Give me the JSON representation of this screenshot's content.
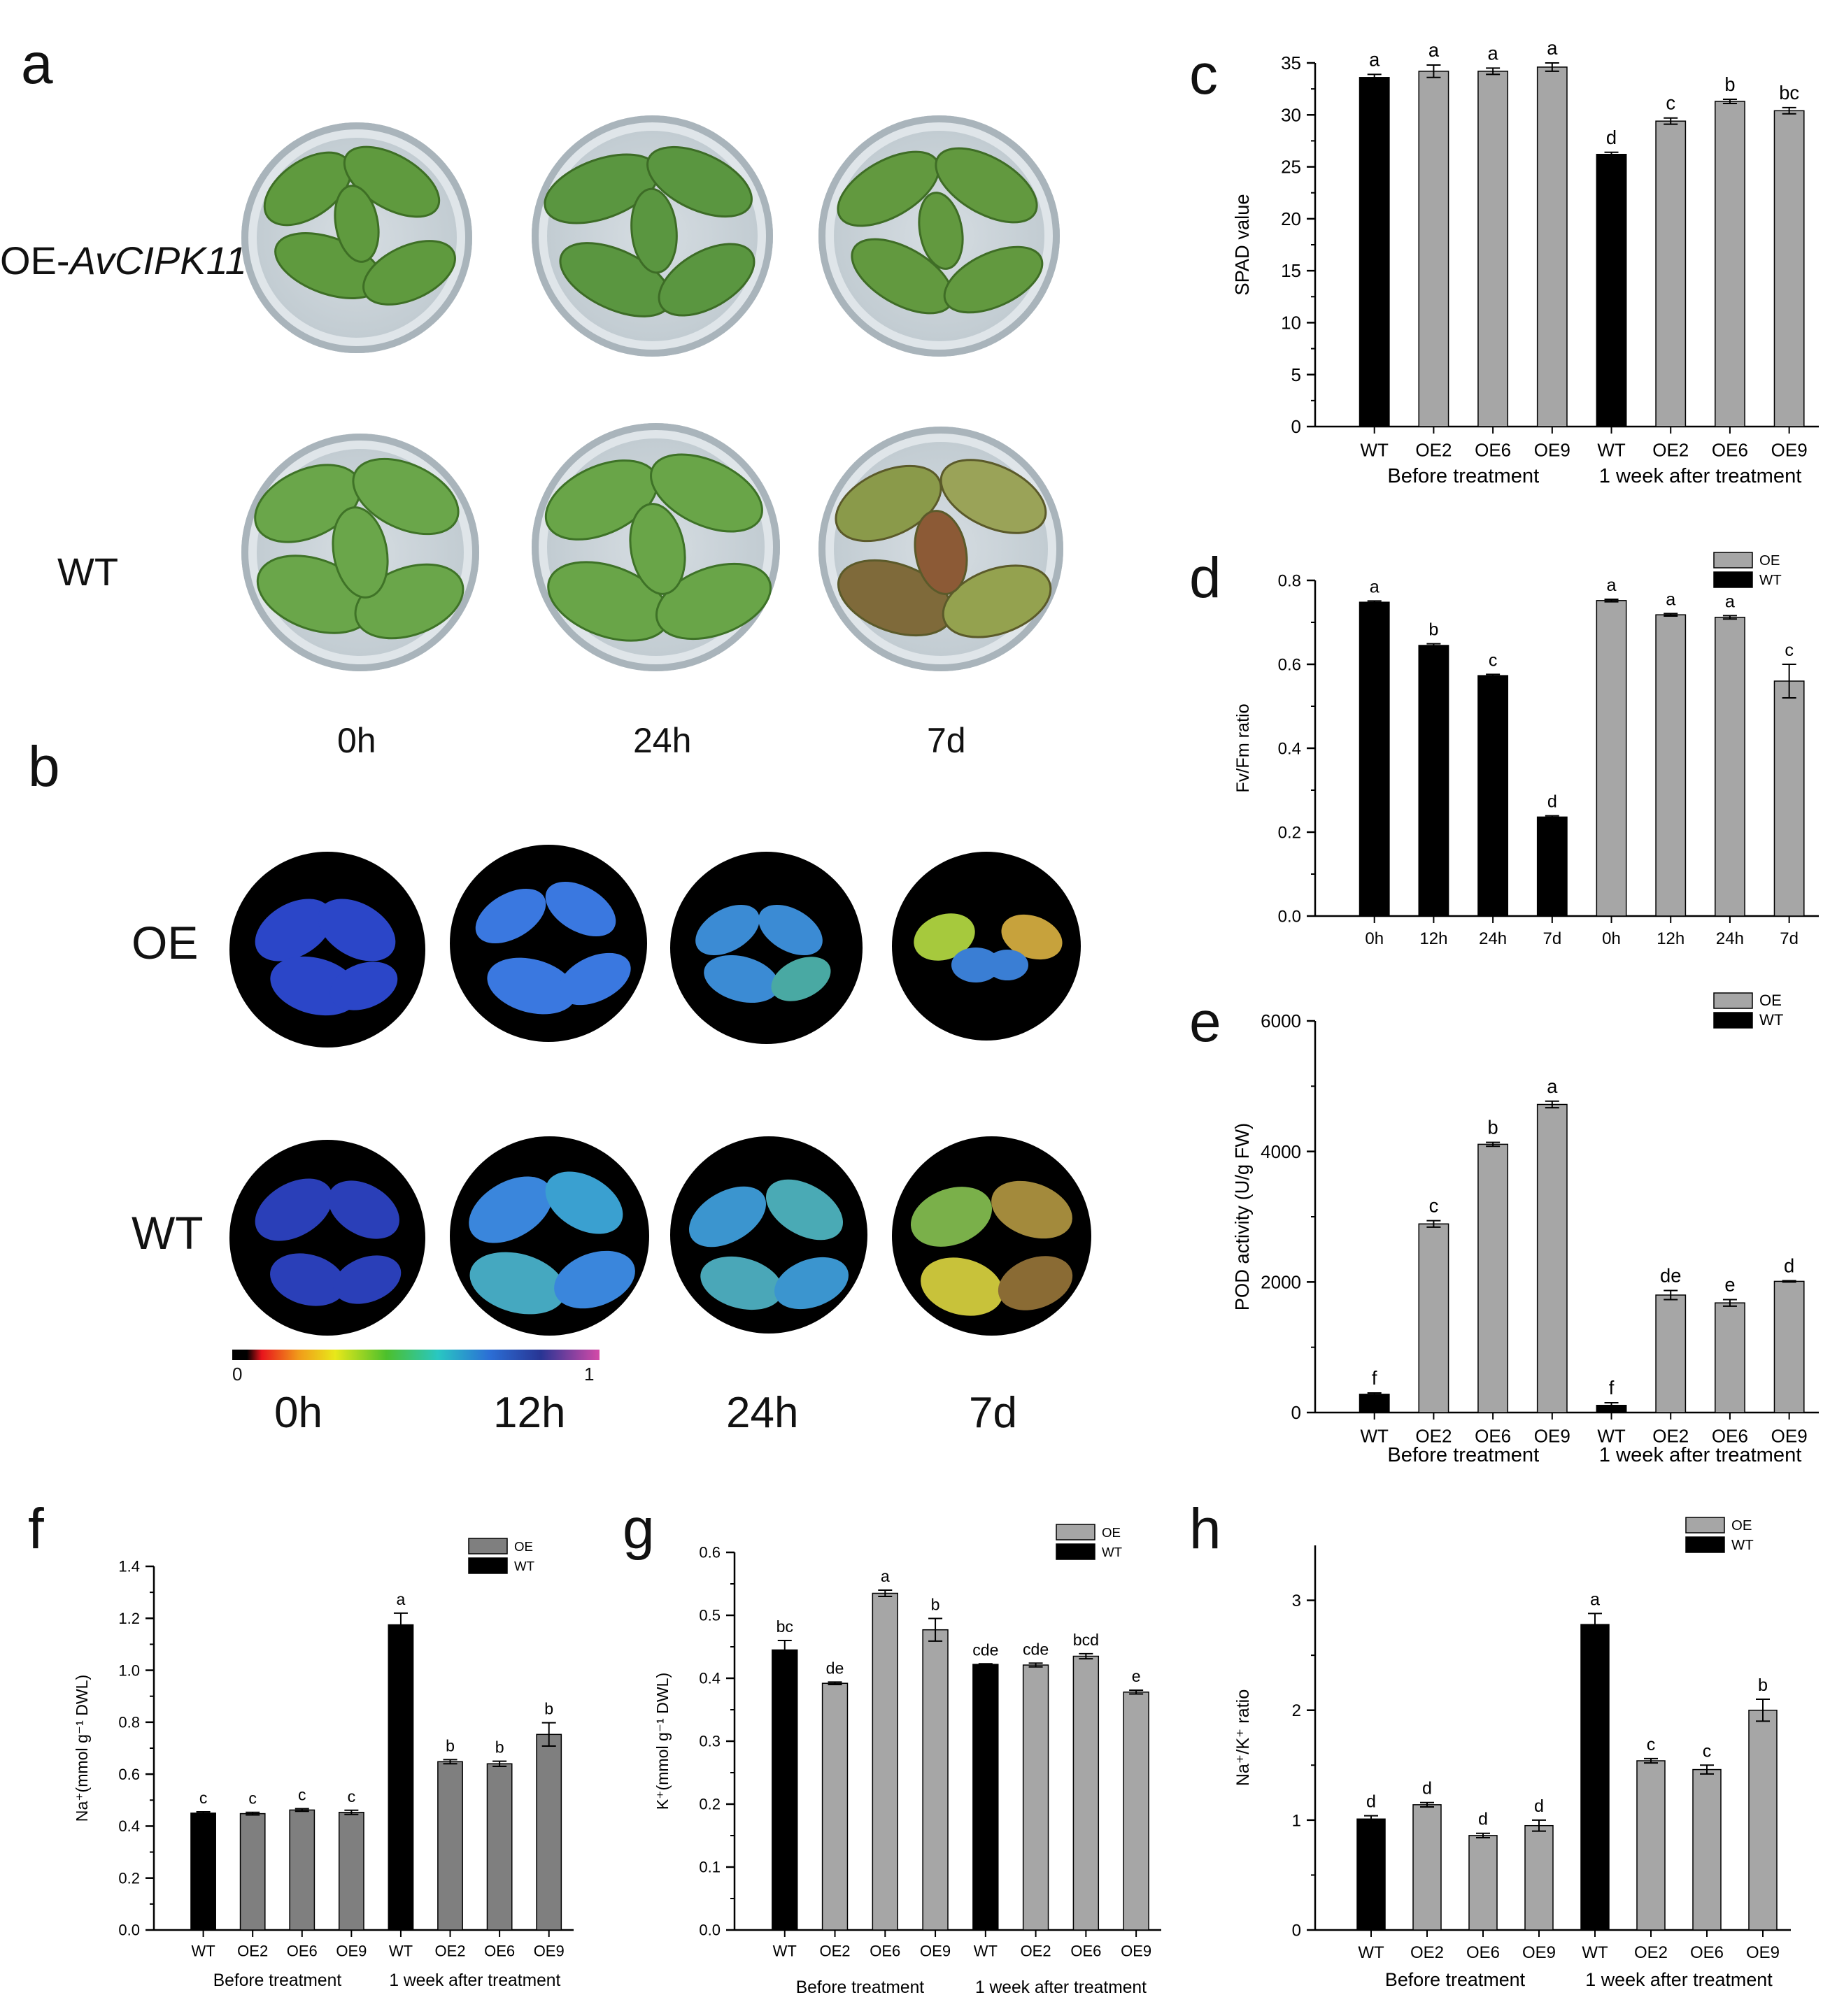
{
  "panels": {
    "a": {
      "letter": "a",
      "rows": [
        "OE-",
        "AvCIPK11",
        "WT"
      ],
      "times": [
        "0h",
        "24h",
        "7d"
      ]
    },
    "b": {
      "letter": "b",
      "rows": [
        "OE",
        "WT"
      ],
      "times": [
        "0h",
        "12h",
        "24h",
        "7d"
      ],
      "scale_min": "0",
      "scale_max": "1"
    }
  },
  "chart_data": [
    {
      "id": "c",
      "letter": "c",
      "type": "bar",
      "ylabel": "SPAD value",
      "ylim": [
        0,
        35
      ],
      "yticks": [
        0,
        5,
        10,
        15,
        20,
        25,
        30,
        35
      ],
      "categories": [
        "WT",
        "OE2",
        "OE6",
        "OE9",
        "WT",
        "OE2",
        "OE6",
        "OE9"
      ],
      "values": [
        33.6,
        34.2,
        34.2,
        34.6,
        26.2,
        29.4,
        31.3,
        30.4
      ],
      "errors": [
        0.3,
        0.6,
        0.3,
        0.4,
        0.2,
        0.3,
        0.2,
        0.3
      ],
      "letters": [
        "a",
        "a",
        "a",
        "a",
        "d",
        "c",
        "b",
        "bc"
      ],
      "bar_colors": [
        "#000000",
        "#a6a6a6",
        "#a6a6a6",
        "#a6a6a6",
        "#000000",
        "#a6a6a6",
        "#a6a6a6",
        "#a6a6a6"
      ],
      "group_labels": [
        "Before treatment",
        "1 week after treatment"
      ]
    },
    {
      "id": "d",
      "letter": "d",
      "type": "bar",
      "ylabel": "Fv/Fm ratio",
      "ylim": [
        0,
        0.8
      ],
      "yticks": [
        0.0,
        0.2,
        0.4,
        0.6,
        0.8
      ],
      "categories": [
        "0h",
        "12h",
        "24h",
        "7d",
        "0h",
        "12h",
        "24h",
        "7d"
      ],
      "values": [
        0.748,
        0.645,
        0.573,
        0.236,
        0.752,
        0.718,
        0.712,
        0.56
      ],
      "errors": [
        0.003,
        0.004,
        0.003,
        0.003,
        0.003,
        0.003,
        0.004,
        0.04
      ],
      "letters": [
        "a",
        "b",
        "c",
        "d",
        "a",
        "a",
        "a",
        "c"
      ],
      "bar_colors": [
        "#000000",
        "#000000",
        "#000000",
        "#000000",
        "#a6a6a6",
        "#a6a6a6",
        "#a6a6a6",
        "#a6a6a6"
      ],
      "legend": [
        {
          "name": "OE",
          "color": "#a6a6a6"
        },
        {
          "name": "WT",
          "color": "#000000"
        }
      ],
      "legend_position": "top-right",
      "group_labels": []
    },
    {
      "id": "e",
      "letter": "e",
      "type": "bar",
      "ylabel": "POD activity (U/g FW)",
      "ylim": [
        0,
        6000
      ],
      "yticks": [
        0,
        2000,
        4000,
        6000
      ],
      "categories": [
        "WT",
        "OE2",
        "OE6",
        "OE9",
        "WT",
        "OE2",
        "OE6",
        "OE9"
      ],
      "values": [
        280,
        2890,
        4110,
        4720,
        110,
        1800,
        1680,
        2010
      ],
      "errors": [
        20,
        50,
        30,
        50,
        40,
        70,
        50,
        10
      ],
      "letters": [
        "f",
        "c",
        "b",
        "a",
        "f",
        "de",
        "e",
        "d"
      ],
      "bar_colors": [
        "#000000",
        "#a6a6a6",
        "#a6a6a6",
        "#a6a6a6",
        "#000000",
        "#a6a6a6",
        "#a6a6a6",
        "#a6a6a6"
      ],
      "legend": [
        {
          "name": "OE",
          "color": "#a6a6a6"
        },
        {
          "name": "WT",
          "color": "#000000"
        }
      ],
      "legend_position": "top-right",
      "group_labels": [
        "Before treatment",
        "1 week after treatment"
      ]
    },
    {
      "id": "f",
      "letter": "f",
      "type": "bar",
      "ylabel": "Na⁺(mmol g⁻¹ DWL)",
      "ylim": [
        0,
        1.4
      ],
      "yticks": [
        0.0,
        0.2,
        0.4,
        0.6,
        0.8,
        1.0,
        1.2,
        1.4
      ],
      "categories": [
        "WT",
        "OE2",
        "OE6",
        "OE9",
        "WT",
        "OE2",
        "OE6",
        "OE9"
      ],
      "values": [
        0.45,
        0.448,
        0.462,
        0.453,
        1.175,
        0.648,
        0.64,
        0.753
      ],
      "errors": [
        0.005,
        0.005,
        0.005,
        0.008,
        0.045,
        0.008,
        0.01,
        0.045
      ],
      "letters": [
        "c",
        "c",
        "c",
        "c",
        "a",
        "b",
        "b",
        "b"
      ],
      "bar_colors": [
        "#000000",
        "#7f7f7f",
        "#7f7f7f",
        "#7f7f7f",
        "#000000",
        "#7f7f7f",
        "#7f7f7f",
        "#7f7f7f"
      ],
      "legend": [
        {
          "name": "OE",
          "color": "#7f7f7f"
        },
        {
          "name": "WT",
          "color": "#000000"
        }
      ],
      "legend_position": "top-right",
      "group_labels": [
        "Before treatment",
        "1 week after treatment"
      ]
    },
    {
      "id": "g",
      "letter": "g",
      "type": "bar",
      "ylabel": "K⁺(mmol g⁻¹ DWL)",
      "ylim": [
        0,
        0.6
      ],
      "yticks": [
        0.0,
        0.1,
        0.2,
        0.3,
        0.4,
        0.5,
        0.6
      ],
      "categories": [
        "WT",
        "OE2",
        "OE6",
        "OE9",
        "WT",
        "OE2",
        "OE6",
        "OE9"
      ],
      "values": [
        0.445,
        0.392,
        0.535,
        0.477,
        0.422,
        0.421,
        0.435,
        0.378
      ],
      "errors": [
        0.015,
        0.002,
        0.005,
        0.018,
        0.001,
        0.003,
        0.004,
        0.003
      ],
      "letters": [
        "bc",
        "de",
        "a",
        "b",
        "cde",
        "cde",
        "bcd",
        "e"
      ],
      "bar_colors": [
        "#000000",
        "#a6a6a6",
        "#a6a6a6",
        "#a6a6a6",
        "#000000",
        "#a6a6a6",
        "#a6a6a6",
        "#a6a6a6"
      ],
      "legend": [
        {
          "name": "OE",
          "color": "#a6a6a6"
        },
        {
          "name": "WT",
          "color": "#000000"
        }
      ],
      "legend_position": "top-right",
      "group_labels": [
        "Before treatment",
        "1 week after treatment"
      ]
    },
    {
      "id": "h",
      "letter": "h",
      "type": "bar",
      "ylabel": "Na⁺/K⁺ ratio",
      "ylim": [
        0,
        3.5
      ],
      "yticks": [
        0,
        1,
        2,
        3
      ],
      "categories": [
        "WT",
        "OE2",
        "OE6",
        "OE9",
        "WT",
        "OE2",
        "OE6",
        "OE9"
      ],
      "values": [
        1.01,
        1.14,
        0.86,
        0.95,
        2.78,
        1.54,
        1.46,
        2.0
      ],
      "errors": [
        0.03,
        0.02,
        0.02,
        0.05,
        0.1,
        0.02,
        0.04,
        0.1
      ],
      "letters": [
        "d",
        "d",
        "d",
        "d",
        "a",
        "c",
        "c",
        "b"
      ],
      "bar_colors": [
        "#000000",
        "#a6a6a6",
        "#a6a6a6",
        "#a6a6a6",
        "#000000",
        "#a6a6a6",
        "#a6a6a6",
        "#a6a6a6"
      ],
      "legend": [
        {
          "name": "OE",
          "color": "#a6a6a6"
        },
        {
          "name": "WT",
          "color": "#000000"
        }
      ],
      "legend_position": "top-right",
      "group_labels": [
        "Before treatment",
        "1 week after treatment"
      ]
    }
  ]
}
